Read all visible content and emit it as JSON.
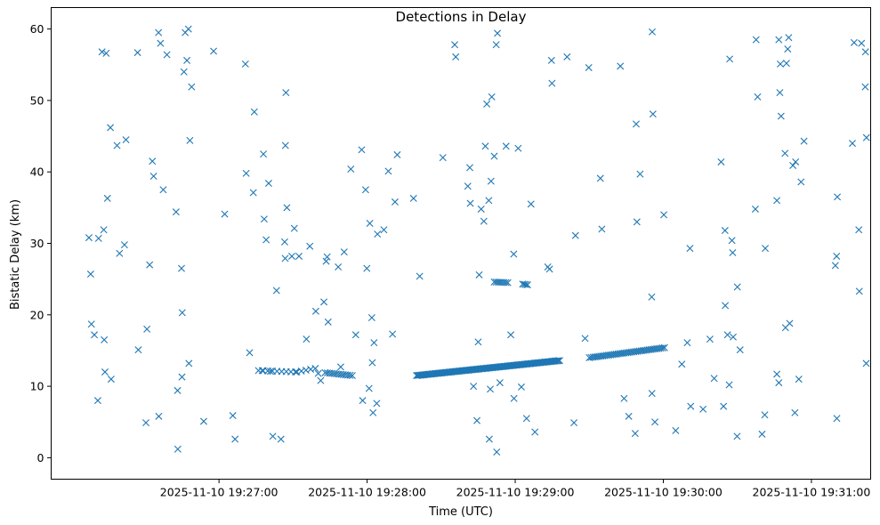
{
  "chart_data": {
    "type": "scatter",
    "title": "Detections in Delay",
    "xlabel": "Time (UTC)",
    "ylabel": "Bistatic Delay (km)",
    "marker": "x",
    "color": "#1f77b4",
    "x_unit": "seconds after 2025-11-10 19:26:00",
    "xlim": [
      -8,
      324
    ],
    "ylim": [
      -3,
      63
    ],
    "x_ticks": [
      {
        "value": 60,
        "label": "2025-11-10 19:27:00"
      },
      {
        "value": 120,
        "label": "2025-11-10 19:28:00"
      },
      {
        "value": 180,
        "label": "2025-11-10 19:29:00"
      },
      {
        "value": 240,
        "label": "2025-11-10 19:30:00"
      },
      {
        "value": 300,
        "label": "2025-11-10 19:31:00"
      }
    ],
    "y_ticks": [
      {
        "value": 0,
        "label": "0"
      },
      {
        "value": 10,
        "label": "10"
      },
      {
        "value": 20,
        "label": "20"
      },
      {
        "value": 30,
        "label": "30"
      },
      {
        "value": 40,
        "label": "40"
      },
      {
        "value": 50,
        "label": "50"
      },
      {
        "value": 60,
        "label": "60"
      }
    ],
    "series": [
      {
        "name": "detections",
        "points": [
          [
            7.3,
            30.8
          ],
          [
            8.0,
            25.7
          ],
          [
            8.3,
            18.7
          ],
          [
            9.5,
            17.2
          ],
          [
            10.9,
            8.0
          ],
          [
            11.2,
            30.7
          ],
          [
            12.6,
            56.8
          ],
          [
            13.3,
            31.9
          ],
          [
            13.5,
            16.5
          ],
          [
            13.8,
            12.0
          ],
          [
            14.3,
            56.6
          ],
          [
            14.8,
            36.3
          ],
          [
            16.0,
            46.2
          ],
          [
            16.3,
            11.0
          ],
          [
            18.7,
            43.7
          ],
          [
            19.7,
            28.6
          ],
          [
            21.7,
            29.8
          ],
          [
            22.3,
            44.5
          ],
          [
            27.0,
            56.7
          ],
          [
            27.3,
            15.1
          ],
          [
            30.4,
            4.9
          ],
          [
            30.8,
            18.0
          ],
          [
            31.9,
            27.0
          ],
          [
            33.0,
            41.5
          ],
          [
            33.5,
            39.4
          ],
          [
            35.5,
            59.5
          ],
          [
            35.6,
            5.8
          ],
          [
            36.3,
            58.0
          ],
          [
            37.4,
            37.5
          ],
          [
            38.9,
            56.4
          ],
          [
            42.6,
            34.4
          ],
          [
            43.2,
            9.4
          ],
          [
            43.3,
            1.2
          ],
          [
            44.8,
            26.5
          ],
          [
            45.0,
            11.3
          ],
          [
            45.1,
            20.3
          ],
          [
            45.8,
            54.0
          ],
          [
            46.3,
            59.5
          ],
          [
            47.0,
            55.6
          ],
          [
            47.6,
            60.0
          ],
          [
            47.8,
            13.2
          ],
          [
            48.2,
            44.4
          ],
          [
            48.9,
            51.9
          ],
          [
            53.8,
            5.1
          ],
          [
            57.8,
            56.9
          ],
          [
            62.3,
            34.1
          ],
          [
            65.6,
            5.9
          ],
          [
            66.5,
            2.6
          ],
          [
            70.7,
            55.1
          ],
          [
            71.0,
            39.8
          ],
          [
            72.4,
            14.7
          ],
          [
            73.9,
            37.1
          ],
          [
            74.3,
            48.4
          ],
          [
            77.5,
            12.2
          ],
          [
            78.0,
            42.5
          ],
          [
            78.3,
            33.4
          ],
          [
            79.1,
            30.5
          ],
          [
            80.1,
            38.4
          ],
          [
            80.8,
            12.1
          ],
          [
            81.8,
            3.0
          ],
          [
            83.3,
            23.4
          ],
          [
            85.1,
            2.6
          ],
          [
            86.6,
            30.2
          ],
          [
            86.8,
            27.9
          ],
          [
            86.9,
            43.7
          ],
          [
            87.1,
            51.1
          ],
          [
            87.5,
            35.0
          ],
          [
            89.5,
            28.2
          ],
          [
            90.5,
            32.1
          ],
          [
            92.4,
            28.2
          ],
          [
            95.4,
            16.6
          ],
          [
            96.8,
            29.6
          ],
          [
            99.2,
            20.5
          ],
          [
            100.2,
            11.8
          ],
          [
            101.2,
            10.8
          ],
          [
            102.5,
            21.8
          ],
          [
            103.4,
            27.5
          ],
          [
            103.8,
            28.1
          ],
          [
            104.2,
            19.0
          ],
          [
            108.3,
            26.7
          ],
          [
            109.3,
            12.7
          ],
          [
            110.7,
            28.8
          ],
          [
            113.4,
            40.4
          ],
          [
            115.4,
            17.2
          ],
          [
            117.8,
            43.1
          ],
          [
            118.2,
            8.0
          ],
          [
            119.4,
            37.5
          ],
          [
            119.9,
            26.5
          ],
          [
            120.8,
            9.7
          ],
          [
            121.1,
            32.8
          ],
          [
            121.9,
            19.6
          ],
          [
            122.1,
            13.3
          ],
          [
            122.4,
            6.3
          ],
          [
            122.8,
            16.1
          ],
          [
            123.9,
            7.6
          ],
          [
            124.2,
            31.3
          ],
          [
            126.8,
            31.9
          ],
          [
            128.6,
            40.1
          ],
          [
            130.3,
            17.3
          ],
          [
            131.3,
            35.8
          ],
          [
            132.2,
            42.4
          ],
          [
            138.8,
            36.3
          ],
          [
            141.3,
            25.4
          ],
          [
            150.7,
            42.0
          ],
          [
            155.5,
            57.8
          ],
          [
            155.9,
            56.1
          ],
          [
            161.6,
            40.6
          ],
          [
            160.8,
            38.0
          ],
          [
            161.8,
            35.6
          ],
          [
            163.1,
            10.0
          ],
          [
            164.5,
            5.2
          ],
          [
            165.0,
            16.2
          ],
          [
            165.4,
            25.6
          ],
          [
            166.2,
            34.8
          ],
          [
            167.3,
            33.1
          ],
          [
            167.9,
            43.6
          ],
          [
            168.5,
            49.5
          ],
          [
            169.3,
            36.0
          ],
          [
            169.5,
            2.6
          ],
          [
            169.9,
            9.6
          ],
          [
            170.2,
            38.7
          ],
          [
            170.5,
            50.5
          ],
          [
            171.5,
            42.2
          ],
          [
            172.3,
            57.8
          ],
          [
            172.8,
            59.4
          ],
          [
            172.5,
            0.8
          ],
          [
            173.8,
            10.5
          ],
          [
            176.3,
            43.6
          ],
          [
            178.2,
            17.2
          ],
          [
            179.4,
            28.5
          ],
          [
            179.5,
            8.3
          ],
          [
            181.2,
            43.3
          ],
          [
            182.5,
            9.9
          ],
          [
            184.6,
            5.5
          ],
          [
            186.4,
            35.5
          ],
          [
            188.0,
            3.6
          ],
          [
            194.7,
            55.6
          ],
          [
            194.9,
            52.4
          ],
          [
            193.2,
            26.7
          ],
          [
            193.9,
            26.4
          ],
          [
            201.0,
            56.1
          ],
          [
            204.4,
            31.1
          ],
          [
            203.8,
            4.9
          ],
          [
            208.3,
            16.7
          ],
          [
            209.8,
            54.6
          ],
          [
            214.5,
            39.1
          ],
          [
            215.1,
            32.0
          ],
          [
            222.6,
            54.8
          ],
          [
            224.1,
            8.3
          ],
          [
            226.0,
            5.8
          ],
          [
            228.6,
            3.4
          ],
          [
            229.0,
            46.7
          ],
          [
            229.3,
            33.0
          ],
          [
            230.6,
            39.7
          ],
          [
            235.3,
            22.5
          ],
          [
            235.5,
            59.6
          ],
          [
            235.8,
            48.1
          ],
          [
            235.4,
            9.0
          ],
          [
            236.6,
            5.0
          ],
          [
            240.2,
            34.0
          ],
          [
            245.0,
            3.8
          ],
          [
            247.5,
            13.1
          ],
          [
            249.7,
            16.1
          ],
          [
            250.8,
            29.3
          ],
          [
            251.1,
            7.2
          ],
          [
            256.1,
            6.8
          ],
          [
            258.9,
            16.6
          ],
          [
            260.6,
            11.1
          ],
          [
            263.4,
            41.4
          ],
          [
            264.4,
            7.2
          ],
          [
            265.0,
            31.8
          ],
          [
            265.1,
            21.3
          ],
          [
            266.0,
            17.2
          ],
          [
            266.7,
            10.2
          ],
          [
            266.9,
            55.8
          ],
          [
            267.8,
            30.4
          ],
          [
            268.1,
            28.7
          ],
          [
            268.3,
            16.9
          ],
          [
            269.9,
            3.0
          ],
          [
            270.0,
            23.9
          ],
          [
            271.1,
            15.1
          ],
          [
            277.3,
            34.8
          ],
          [
            278.2,
            50.5
          ],
          [
            277.6,
            58.5
          ],
          [
            280.0,
            3.3
          ],
          [
            281.3,
            29.3
          ],
          [
            281.1,
            6.0
          ],
          [
            286.0,
            36.0
          ],
          [
            286.8,
            58.5
          ],
          [
            287.2,
            51.1
          ],
          [
            287.4,
            55.1
          ],
          [
            287.7,
            47.8
          ],
          [
            286.0,
            11.7
          ],
          [
            286.8,
            10.5
          ],
          [
            289.3,
            42.6
          ],
          [
            289.9,
            55.2
          ],
          [
            290.8,
            58.8
          ],
          [
            290.4,
            57.2
          ],
          [
            291.2,
            18.8
          ],
          [
            289.5,
            18.2
          ],
          [
            292.5,
            40.9
          ],
          [
            293.6,
            41.4
          ],
          [
            293.3,
            6.3
          ],
          [
            294.9,
            11.0
          ],
          [
            295.8,
            38.6
          ],
          [
            297.0,
            44.3
          ],
          [
            309.7,
            26.9
          ],
          [
            310.2,
            28.2
          ],
          [
            310.3,
            5.5
          ],
          [
            310.5,
            36.5
          ],
          [
            316.6,
            44.0
          ],
          [
            317.3,
            58.1
          ],
          [
            319.2,
            31.9
          ],
          [
            319.4,
            23.3
          ],
          [
            320.3,
            58.0
          ],
          [
            321.9,
            56.8
          ],
          [
            321.8,
            51.9
          ],
          [
            322.3,
            44.8
          ],
          [
            322.2,
            13.2
          ]
        ]
      }
    ],
    "track_segments": [
      {
        "x": [
          76.0,
          91.0
        ],
        "y": [
          12.2,
          12.0
        ],
        "count": 9
      },
      {
        "x": [
          91.5,
          99.0
        ],
        "y": [
          12.0,
          12.5
        ],
        "count": 5
      },
      {
        "x": [
          103.0,
          114.0
        ],
        "y": [
          11.9,
          11.5
        ],
        "count": 13
      },
      {
        "x": [
          140.0,
          198.0
        ],
        "y": [
          11.5,
          13.6
        ],
        "count": 120
      },
      {
        "x": [
          171.5,
          177.0
        ],
        "y": [
          24.6,
          24.5
        ],
        "count": 8
      },
      {
        "x": [
          183.0,
          185.0
        ],
        "y": [
          24.3,
          24.2
        ],
        "count": 4
      },
      {
        "x": [
          210.0,
          240.5
        ],
        "y": [
          14.0,
          15.4
        ],
        "count": 40
      }
    ]
  }
}
